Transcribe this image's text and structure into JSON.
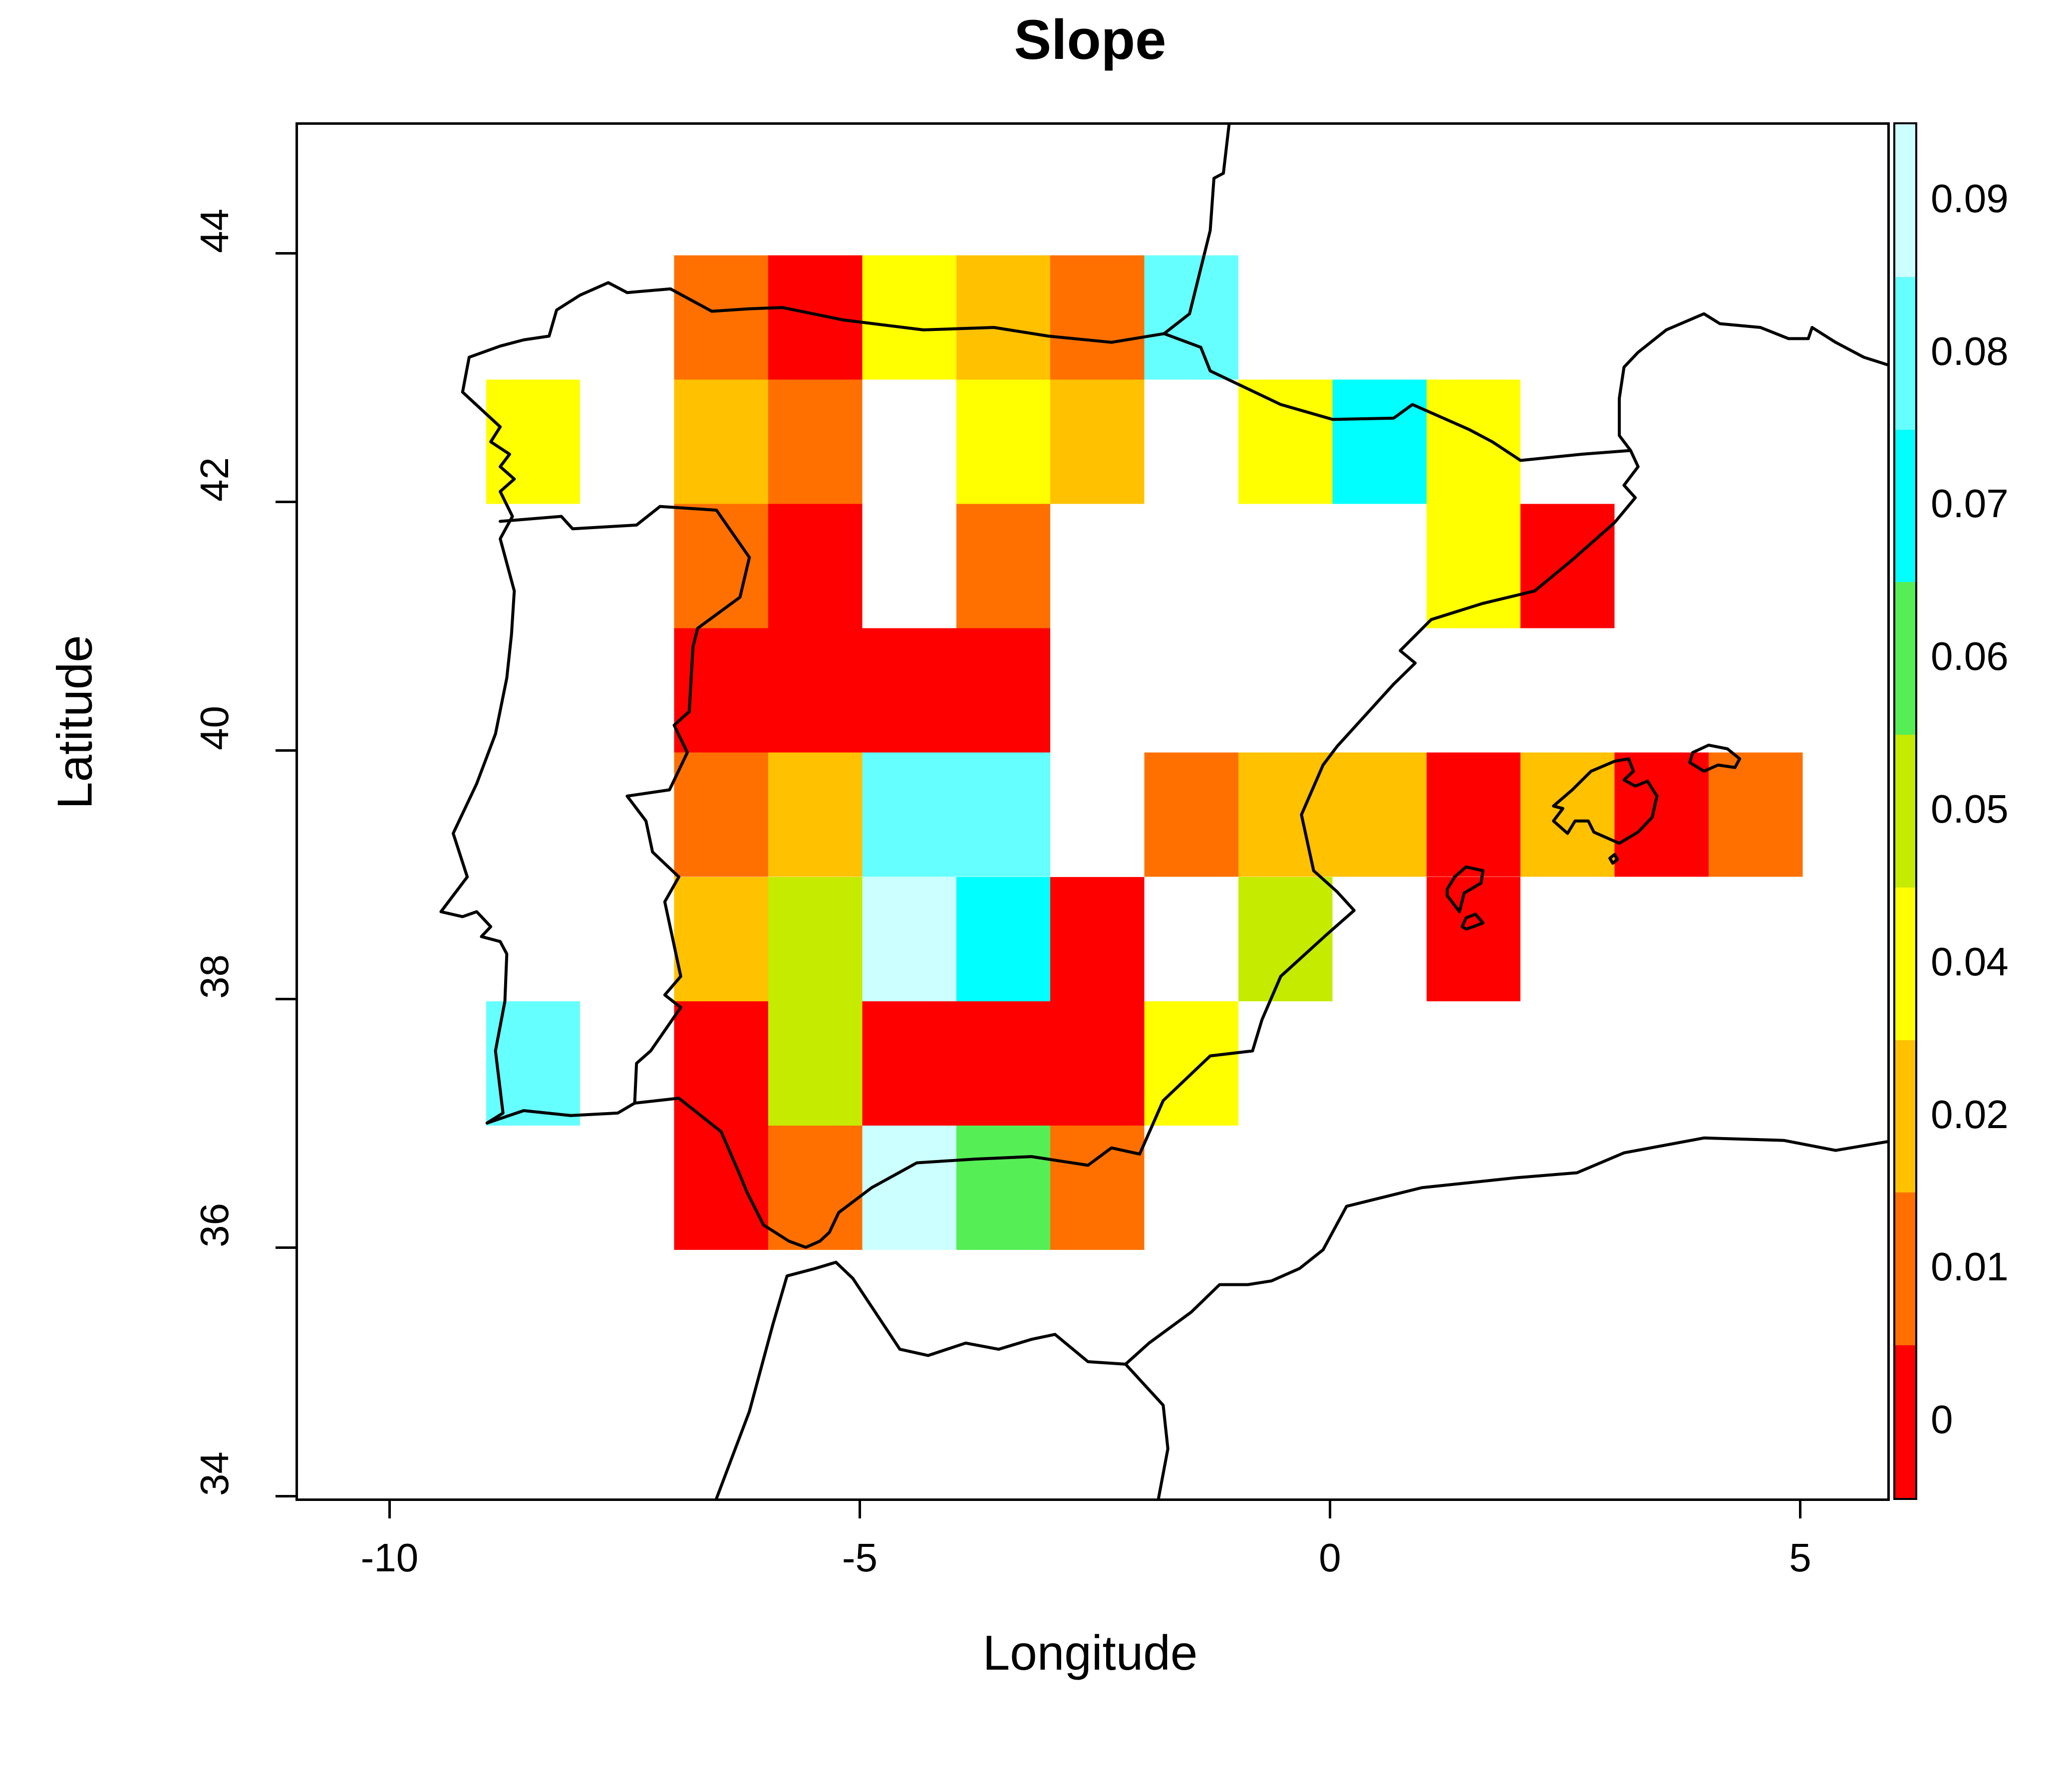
{
  "title": "Slope",
  "axes": {
    "x": {
      "label": "Longitude",
      "ticks": [
        -10,
        -5,
        0,
        5
      ]
    },
    "y": {
      "label": "Latitude",
      "ticks": [
        34,
        36,
        38,
        40,
        42,
        44
      ]
    }
  },
  "chart_data": {
    "type": "heatmap",
    "title": "Slope",
    "xlabel": "Longitude",
    "ylabel": "Latitude",
    "x_ticks": [
      -10,
      -5,
      0,
      5
    ],
    "y_ticks": [
      34,
      36,
      38,
      40,
      42,
      44
    ],
    "xlim": [
      -11.0,
      5.9
    ],
    "ylim": [
      34.0,
      45.05
    ],
    "grid": false,
    "cell_size_deg": 1,
    "legend": {
      "position": "right",
      "classes": [
        {
          "label": "0",
          "color": "#FF0000"
        },
        {
          "label": "0.01",
          "color": "#FF7000"
        },
        {
          "label": "0.02",
          "color": "#FFC100"
        },
        {
          "label": "0.04",
          "color": "#FFFF00"
        },
        {
          "label": "0.05",
          "color": "#C4EB00"
        },
        {
          "label": "0.06",
          "color": "#55EE55"
        },
        {
          "label": "0.07",
          "color": "#00FFFF"
        },
        {
          "label": "0.08",
          "color": "#66FFFF"
        },
        {
          "label": "0.09",
          "color": "#CCFFFF"
        }
      ]
    },
    "cells": [
      {
        "lon": -7,
        "lat": 43,
        "v": "0.01"
      },
      {
        "lon": -6,
        "lat": 43,
        "v": "0"
      },
      {
        "lon": -5,
        "lat": 43,
        "v": "0.04"
      },
      {
        "lon": -4,
        "lat": 43,
        "v": "0.02"
      },
      {
        "lon": -3,
        "lat": 43,
        "v": "0.01"
      },
      {
        "lon": -2,
        "lat": 43,
        "v": "0.08"
      },
      {
        "lon": -9,
        "lat": 42,
        "v": "0.04"
      },
      {
        "lon": -7,
        "lat": 42,
        "v": "0.02"
      },
      {
        "lon": -6,
        "lat": 42,
        "v": "0.01"
      },
      {
        "lon": -4,
        "lat": 42,
        "v": "0.04"
      },
      {
        "lon": -3,
        "lat": 42,
        "v": "0.02"
      },
      {
        "lon": -1,
        "lat": 42,
        "v": "0.04"
      },
      {
        "lon": 0,
        "lat": 42,
        "v": "0.07"
      },
      {
        "lon": 1,
        "lat": 42,
        "v": "0.04"
      },
      {
        "lon": -7,
        "lat": 41,
        "v": "0.01"
      },
      {
        "lon": -6,
        "lat": 41,
        "v": "0"
      },
      {
        "lon": -4,
        "lat": 41,
        "v": "0.01"
      },
      {
        "lon": 1,
        "lat": 41,
        "v": "0.04"
      },
      {
        "lon": 2,
        "lat": 41,
        "v": "0"
      },
      {
        "lon": -7,
        "lat": 40,
        "v": "0"
      },
      {
        "lon": -6,
        "lat": 40,
        "v": "0"
      },
      {
        "lon": -5,
        "lat": 40,
        "v": "0"
      },
      {
        "lon": -4,
        "lat": 40,
        "v": "0"
      },
      {
        "lon": -7,
        "lat": 39,
        "v": "0.01"
      },
      {
        "lon": -6,
        "lat": 39,
        "v": "0.02"
      },
      {
        "lon": -5,
        "lat": 39,
        "v": "0.08"
      },
      {
        "lon": -4,
        "lat": 39,
        "v": "0.08"
      },
      {
        "lon": -2,
        "lat": 39,
        "v": "0.01"
      },
      {
        "lon": -1,
        "lat": 39,
        "v": "0.02"
      },
      {
        "lon": 0,
        "lat": 39,
        "v": "0.02"
      },
      {
        "lon": 1,
        "lat": 39,
        "v": "0"
      },
      {
        "lon": 2,
        "lat": 39,
        "v": "0.02"
      },
      {
        "lon": 3,
        "lat": 39,
        "v": "0"
      },
      {
        "lon": 4,
        "lat": 39,
        "v": "0.01"
      },
      {
        "lon": -7,
        "lat": 38,
        "v": "0.02"
      },
      {
        "lon": -6,
        "lat": 38,
        "v": "0.05"
      },
      {
        "lon": -5,
        "lat": 38,
        "v": "0.09"
      },
      {
        "lon": -4,
        "lat": 38,
        "v": "0.07"
      },
      {
        "lon": -3,
        "lat": 38,
        "v": "0"
      },
      {
        "lon": -1,
        "lat": 38,
        "v": "0.05"
      },
      {
        "lon": 1,
        "lat": 38,
        "v": "0"
      },
      {
        "lon": -9,
        "lat": 37,
        "v": "0.08"
      },
      {
        "lon": -7,
        "lat": 37,
        "v": "0"
      },
      {
        "lon": -6,
        "lat": 37,
        "v": "0.05"
      },
      {
        "lon": -5,
        "lat": 37,
        "v": "0"
      },
      {
        "lon": -4,
        "lat": 37,
        "v": "0"
      },
      {
        "lon": -3,
        "lat": 37,
        "v": "0"
      },
      {
        "lon": -2,
        "lat": 37,
        "v": "0.04"
      },
      {
        "lon": -7,
        "lat": 36,
        "v": "0"
      },
      {
        "lon": -6,
        "lat": 36,
        "v": "0.01"
      },
      {
        "lon": -5,
        "lat": 36,
        "v": "0.09"
      },
      {
        "lon": -4,
        "lat": 36,
        "v": "0.06"
      },
      {
        "lon": -3,
        "lat": 36,
        "v": "0.01"
      }
    ]
  },
  "map_outlines": [
    {
      "name": "iberia-coastline",
      "closed": false,
      "pts": [
        [
          -1.79,
          43.37
        ],
        [
          -2.35,
          43.3
        ],
        [
          -3.02,
          43.35
        ],
        [
          -3.6,
          43.42
        ],
        [
          -4.35,
          43.4
        ],
        [
          -5.2,
          43.48
        ],
        [
          -5.85,
          43.58
        ],
        [
          -6.2,
          43.57
        ],
        [
          -6.6,
          43.55
        ],
        [
          -7.04,
          43.73
        ],
        [
          -7.5,
          43.7
        ],
        [
          -7.7,
          43.78
        ],
        [
          -8.0,
          43.68
        ],
        [
          -8.25,
          43.56
        ],
        [
          -8.33,
          43.35
        ],
        [
          -8.6,
          43.32
        ],
        [
          -8.85,
          43.27
        ],
        [
          -9.18,
          43.18
        ],
        [
          -9.25,
          42.9
        ],
        [
          -8.85,
          42.62
        ],
        [
          -8.95,
          42.5
        ],
        [
          -8.75,
          42.4
        ],
        [
          -8.85,
          42.3
        ],
        [
          -8.7,
          42.2
        ],
        [
          -8.85,
          42.1
        ],
        [
          -8.72,
          41.9
        ],
        [
          -8.85,
          41.72
        ],
        [
          -8.7,
          41.3
        ],
        [
          -8.73,
          40.95
        ],
        [
          -8.78,
          40.6
        ],
        [
          -8.9,
          40.15
        ],
        [
          -9.1,
          39.75
        ],
        [
          -9.35,
          39.35
        ],
        [
          -9.2,
          39.0
        ],
        [
          -9.48,
          38.72
        ],
        [
          -9.25,
          38.68
        ],
        [
          -9.1,
          38.72
        ],
        [
          -8.95,
          38.6
        ],
        [
          -9.05,
          38.52
        ],
        [
          -8.85,
          38.48
        ],
        [
          -8.78,
          38.38
        ],
        [
          -8.8,
          38.0
        ],
        [
          -8.9,
          37.6
        ],
        [
          -8.82,
          37.1
        ],
        [
          -8.99,
          37.02
        ],
        [
          -8.6,
          37.12
        ],
        [
          -8.1,
          37.08
        ],
        [
          -7.6,
          37.1
        ],
        [
          -7.42,
          37.18
        ],
        [
          -6.95,
          37.22
        ],
        [
          -6.5,
          36.95
        ],
        [
          -6.3,
          36.6
        ],
        [
          -6.23,
          36.47
        ],
        [
          -6.05,
          36.2
        ],
        [
          -5.78,
          36.07
        ],
        [
          -5.6,
          36.02
        ],
        [
          -5.45,
          36.07
        ],
        [
          -5.35,
          36.14
        ],
        [
          -5.25,
          36.3
        ],
        [
          -4.9,
          36.5
        ],
        [
          -4.42,
          36.7
        ],
        [
          -3.8,
          36.73
        ],
        [
          -3.2,
          36.75
        ],
        [
          -2.6,
          36.68
        ],
        [
          -2.35,
          36.82
        ],
        [
          -2.05,
          36.77
        ],
        [
          -1.8,
          37.2
        ],
        [
          -1.3,
          37.56
        ],
        [
          -0.85,
          37.6
        ],
        [
          -0.75,
          37.85
        ],
        [
          -0.55,
          38.2
        ],
        [
          -0.07,
          38.53
        ],
        [
          0.23,
          38.73
        ],
        [
          0.05,
          38.88
        ],
        [
          -0.2,
          39.05
        ],
        [
          -0.33,
          39.5
        ],
        [
          -0.1,
          39.9
        ],
        [
          0.05,
          40.05
        ],
        [
          0.65,
          40.55
        ],
        [
          0.88,
          40.72
        ],
        [
          0.72,
          40.82
        ],
        [
          1.05,
          41.07
        ],
        [
          1.6,
          41.2
        ],
        [
          2.15,
          41.3
        ],
        [
          2.55,
          41.55
        ],
        [
          3.0,
          41.85
        ],
        [
          3.22,
          42.05
        ],
        [
          3.1,
          42.15
        ],
        [
          3.25,
          42.3
        ],
        [
          3.17,
          42.43
        ]
      ]
    },
    {
      "name": "spain-france-border",
      "closed": false,
      "pts": [
        [
          3.17,
          42.43
        ],
        [
          2.65,
          42.4
        ],
        [
          2.0,
          42.35
        ],
        [
          1.7,
          42.5
        ],
        [
          1.45,
          42.6
        ],
        [
          0.85,
          42.8
        ],
        [
          0.65,
          42.69
        ],
        [
          0.0,
          42.68
        ],
        [
          -0.55,
          42.8
        ],
        [
          -1.3,
          43.07
        ],
        [
          -1.4,
          43.26
        ],
        [
          -1.79,
          43.37
        ]
      ]
    },
    {
      "name": "portugal-spain-border",
      "closed": false,
      "pts": [
        [
          -8.85,
          41.86
        ],
        [
          -8.2,
          41.9
        ],
        [
          -8.08,
          41.8
        ],
        [
          -7.4,
          41.83
        ],
        [
          -7.15,
          41.98
        ],
        [
          -6.55,
          41.95
        ],
        [
          -6.2,
          41.57
        ],
        [
          -6.3,
          41.25
        ],
        [
          -6.75,
          41.0
        ],
        [
          -6.8,
          40.85
        ],
        [
          -6.84,
          40.33
        ],
        [
          -7.0,
          40.22
        ],
        [
          -6.86,
          40.0
        ],
        [
          -7.05,
          39.7
        ],
        [
          -7.5,
          39.65
        ],
        [
          -7.3,
          39.45
        ],
        [
          -7.23,
          39.2
        ],
        [
          -6.95,
          39.0
        ],
        [
          -7.1,
          38.8
        ],
        [
          -6.93,
          38.2
        ],
        [
          -7.1,
          38.05
        ],
        [
          -6.93,
          37.95
        ],
        [
          -7.25,
          37.6
        ],
        [
          -7.4,
          37.5
        ],
        [
          -7.42,
          37.18
        ]
      ]
    },
    {
      "name": "france-atlantic-coast",
      "closed": false,
      "pts": [
        [
          -1.79,
          43.37
        ],
        [
          -1.52,
          43.53
        ],
        [
          -1.3,
          44.2
        ],
        [
          -1.26,
          44.62
        ],
        [
          -1.16,
          44.66
        ],
        [
          -1.1,
          45.05
        ]
      ]
    },
    {
      "name": "france-mediterranean-coast",
      "closed": false,
      "pts": [
        [
          3.17,
          42.43
        ],
        [
          3.05,
          42.55
        ],
        [
          3.05,
          42.85
        ],
        [
          3.1,
          43.1
        ],
        [
          3.25,
          43.22
        ],
        [
          3.55,
          43.4
        ],
        [
          3.95,
          43.53
        ],
        [
          4.12,
          43.45
        ],
        [
          4.55,
          43.42
        ],
        [
          4.85,
          43.33
        ],
        [
          5.06,
          43.33
        ],
        [
          5.1,
          43.42
        ],
        [
          5.35,
          43.3
        ],
        [
          5.65,
          43.18
        ],
        [
          5.9,
          43.12
        ]
      ]
    },
    {
      "name": "north-africa-coastline",
      "closed": false,
      "pts": [
        [
          -6.55,
          34.0
        ],
        [
          -6.2,
          34.7
        ],
        [
          -5.95,
          35.4
        ],
        [
          -5.8,
          35.79
        ],
        [
          -5.5,
          35.85
        ],
        [
          -5.28,
          35.9
        ],
        [
          -5.1,
          35.77
        ],
        [
          -4.6,
          35.2
        ],
        [
          -4.3,
          35.15
        ],
        [
          -3.9,
          35.25
        ],
        [
          -3.55,
          35.2
        ],
        [
          -3.2,
          35.28
        ],
        [
          -2.95,
          35.32
        ],
        [
          -2.6,
          35.1
        ],
        [
          -2.2,
          35.08
        ],
        [
          -1.95,
          35.25
        ],
        [
          -1.5,
          35.5
        ],
        [
          -1.2,
          35.72
        ],
        [
          -0.9,
          35.72
        ],
        [
          -0.65,
          35.75
        ],
        [
          -0.35,
          35.85
        ],
        [
          -0.1,
          36.0
        ],
        [
          0.15,
          36.35
        ],
        [
          0.95,
          36.5
        ],
        [
          1.95,
          36.58
        ],
        [
          2.6,
          36.62
        ],
        [
          3.1,
          36.78
        ],
        [
          3.95,
          36.9
        ],
        [
          4.8,
          36.88
        ],
        [
          5.35,
          36.8
        ],
        [
          5.9,
          36.87
        ]
      ]
    },
    {
      "name": "morocco-algeria-border",
      "closed": false,
      "pts": [
        [
          -2.2,
          35.08
        ],
        [
          -1.8,
          34.75
        ],
        [
          -1.75,
          34.4
        ],
        [
          -1.85,
          34.0
        ]
      ]
    },
    {
      "name": "ibiza-island",
      "closed": true,
      "pts": [
        [
          1.22,
          38.9
        ],
        [
          1.3,
          39.0
        ],
        [
          1.42,
          39.08
        ],
        [
          1.6,
          39.05
        ],
        [
          1.58,
          38.95
        ],
        [
          1.4,
          38.87
        ],
        [
          1.35,
          38.72
        ],
        [
          1.22,
          38.85
        ]
      ]
    },
    {
      "name": "formentera-island",
      "closed": true,
      "pts": [
        [
          1.42,
          38.67
        ],
        [
          1.52,
          38.7
        ],
        [
          1.6,
          38.63
        ],
        [
          1.5,
          38.6
        ],
        [
          1.42,
          38.58
        ],
        [
          1.38,
          38.6
        ]
      ]
    },
    {
      "name": "mallorca-island",
      "closed": true,
      "pts": [
        [
          2.35,
          39.57
        ],
        [
          2.55,
          39.7
        ],
        [
          2.75,
          39.85
        ],
        [
          3.0,
          39.93
        ],
        [
          3.15,
          39.95
        ],
        [
          3.2,
          39.85
        ],
        [
          3.1,
          39.78
        ],
        [
          3.22,
          39.73
        ],
        [
          3.35,
          39.77
        ],
        [
          3.45,
          39.65
        ],
        [
          3.4,
          39.48
        ],
        [
          3.25,
          39.36
        ],
        [
          3.05,
          39.27
        ],
        [
          2.78,
          39.36
        ],
        [
          2.72,
          39.45
        ],
        [
          2.58,
          39.45
        ],
        [
          2.5,
          39.35
        ],
        [
          2.35,
          39.45
        ],
        [
          2.45,
          39.55
        ]
      ]
    },
    {
      "name": "cabrera-island",
      "closed": true,
      "pts": [
        [
          2.95,
          39.15
        ],
        [
          3.0,
          39.18
        ],
        [
          3.03,
          39.14
        ],
        [
          2.98,
          39.11
        ]
      ]
    },
    {
      "name": "menorca-island",
      "closed": true,
      "pts": [
        [
          3.8,
          39.92
        ],
        [
          3.83,
          40.0
        ],
        [
          4.0,
          40.06
        ],
        [
          4.2,
          40.03
        ],
        [
          4.33,
          39.95
        ],
        [
          4.28,
          39.88
        ],
        [
          4.1,
          39.9
        ],
        [
          3.95,
          39.85
        ]
      ]
    }
  ]
}
